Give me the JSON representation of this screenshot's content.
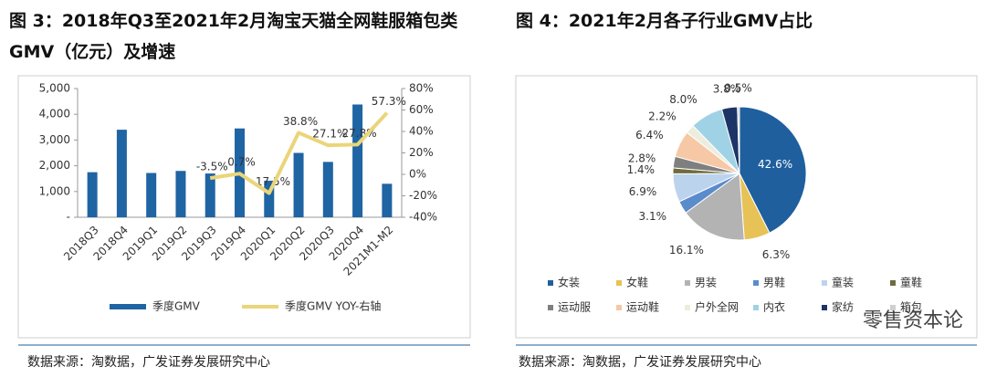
{
  "charts_title_note": null,
  "chart_data": [
    {
      "type": "combo",
      "title": "图 3：2018年Q3至2021年2月淘宝天猫全网鞋服箱包类GMV（亿元）及增速",
      "source": "数据来源：淘数据，广发证券发展研究中心",
      "categories": [
        "2018Q3",
        "2018Q4",
        "2019Q1",
        "2019Q2",
        "2019Q3",
        "2019Q4",
        "2020Q1",
        "2020Q2",
        "2020Q3",
        "2020Q4",
        "2021M1-M2"
      ],
      "series": [
        {
          "name": "季度GMV",
          "type": "bar",
          "color": "#1f64a3",
          "values": [
            1750,
            3400,
            1720,
            1800,
            1700,
            3450,
            1420,
            2500,
            2150,
            4380,
            1300
          ]
        },
        {
          "name": "季度GMV YOY-右轴",
          "type": "line",
          "axis": "y2",
          "color": "#ead57a",
          "values": [
            null,
            null,
            null,
            null,
            -3.5,
            0.7,
            -17.5,
            38.8,
            27.1,
            27.8,
            57.3
          ],
          "value_labels": [
            null,
            null,
            null,
            null,
            "-3.5%",
            "0.7%",
            "-17.5%",
            "38.8%",
            "27.1%",
            "27.8%",
            "57.3%"
          ]
        }
      ],
      "ylim": [
        0,
        5000
      ],
      "yticks": [
        {
          "value": 0,
          "label": "-"
        },
        {
          "value": 1000,
          "label": "1,000"
        },
        {
          "value": 2000,
          "label": "2,000"
        },
        {
          "value": 3000,
          "label": "3,000"
        },
        {
          "value": 4000,
          "label": "4,000"
        },
        {
          "value": 5000,
          "label": "5,000"
        }
      ],
      "y2lim": [
        -40,
        80
      ],
      "y2ticks": [
        {
          "value": -40,
          "label": "-40%"
        },
        {
          "value": -20,
          "label": "-20%"
        },
        {
          "value": 0,
          "label": "0%"
        },
        {
          "value": 20,
          "label": "20%"
        },
        {
          "value": 40,
          "label": "40%"
        },
        {
          "value": 60,
          "label": "60%"
        },
        {
          "value": 80,
          "label": "80%"
        }
      ],
      "legend": "bottom"
    },
    {
      "type": "pie",
      "title": "图 4：2021年2月各子行业GMV占比",
      "source": "数据来源：淘数据，广发证券发展研究中心",
      "watermark": "零售资本论",
      "categories": [
        "女装",
        "女鞋",
        "男装",
        "男鞋",
        "童装",
        "童鞋",
        "运动服",
        "运动鞋",
        "户外全网",
        "内衣",
        "家纺",
        "箱包"
      ],
      "values": [
        42.6,
        6.3,
        16.1,
        3.1,
        6.9,
        1.4,
        2.8,
        6.4,
        2.2,
        8.0,
        3.8,
        0.5
      ],
      "value_labels": [
        "42.6%",
        "6.3%",
        "16.1%",
        "3.1%",
        "6.9%",
        "1.4%",
        "2.8%",
        "6.4%",
        "2.2%",
        "8.0%",
        "3.8%",
        "0.5%"
      ],
      "colors": [
        "#1f5f9e",
        "#e6c257",
        "#b3b3b3",
        "#5a8ccc",
        "#bcd3ee",
        "#6e6c3c",
        "#7f7f7f",
        "#f6c8a6",
        "#ededdf",
        "#9fd2e4",
        "#1d3566",
        "#d0d0d0"
      ],
      "legend": "bottom"
    }
  ]
}
